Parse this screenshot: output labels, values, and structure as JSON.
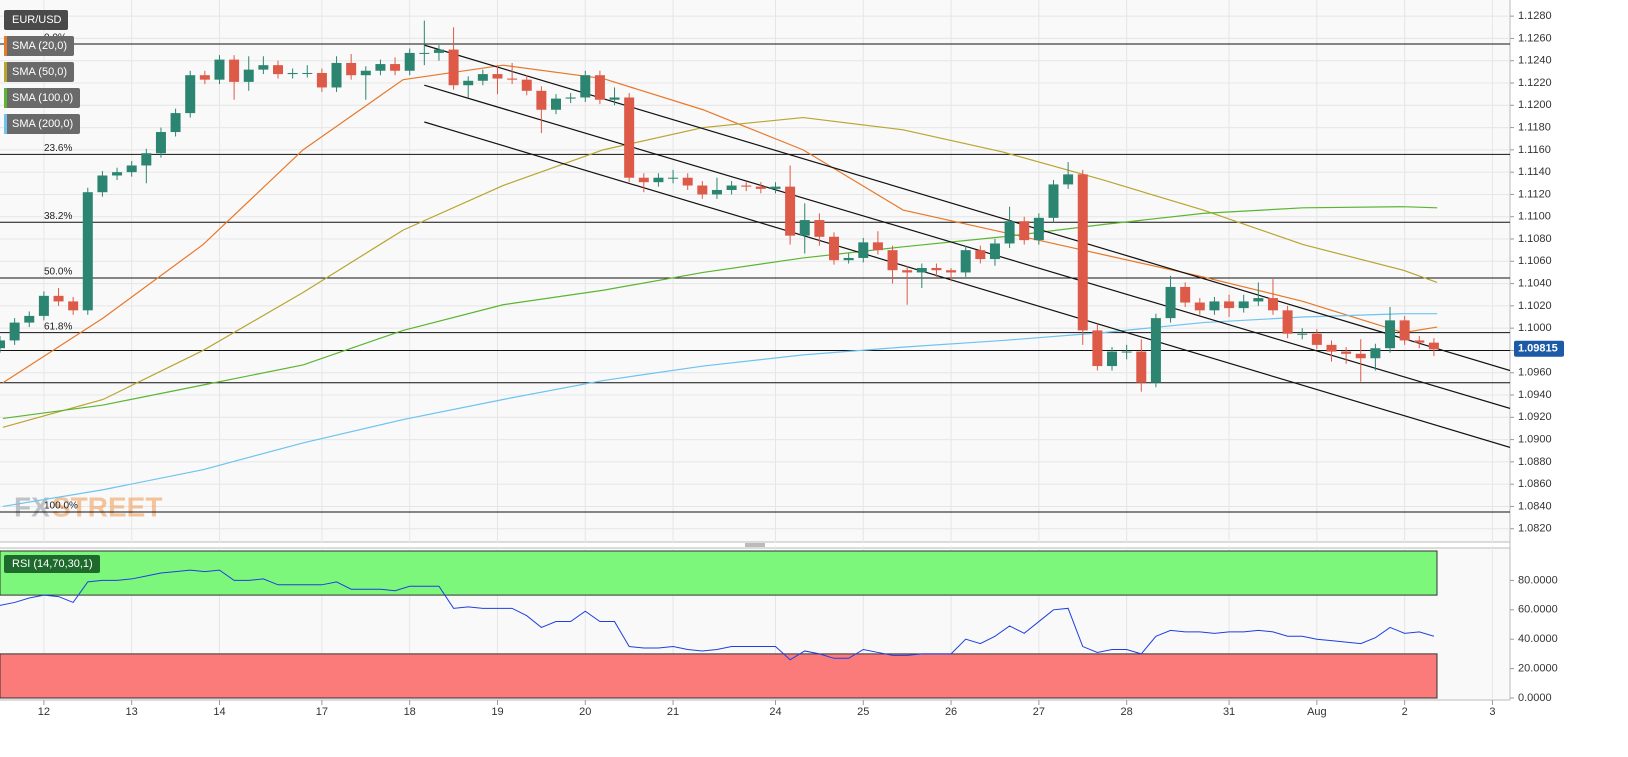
{
  "chart_data": [
    {
      "type": "candlestick",
      "title": "EUR/USD",
      "watermark": [
        "FX",
        "STREET"
      ],
      "up_color": "#2c8570",
      "down_color": "#dc5a47",
      "xlim": [
        0,
        103.2
      ],
      "xticks": [
        {
          "value": 3,
          "label": "12"
        },
        {
          "value": 9,
          "label": "13"
        },
        {
          "value": 15,
          "label": "14"
        },
        {
          "value": 22,
          "label": "17"
        },
        {
          "value": 28,
          "label": "18"
        },
        {
          "value": 34,
          "label": "19"
        },
        {
          "value": 40,
          "label": "20"
        },
        {
          "value": 46,
          "label": "21"
        },
        {
          "value": 53,
          "label": "24"
        },
        {
          "value": 59,
          "label": "25"
        },
        {
          "value": 65,
          "label": "26"
        },
        {
          "value": 71,
          "label": "27"
        },
        {
          "value": 77,
          "label": "28"
        },
        {
          "value": 84,
          "label": "31"
        },
        {
          "value": 90,
          "label": "Aug"
        },
        {
          "value": 96,
          "label": "2"
        },
        {
          "value": 102,
          "label": "3"
        }
      ],
      "ylim": [
        1.0809,
        1.129
      ],
      "yticks": [
        {
          "value": 1.082,
          "label": "1.0820"
        },
        {
          "value": 1.084,
          "label": "1.0840"
        },
        {
          "value": 1.086,
          "label": "1.0860"
        },
        {
          "value": 1.088,
          "label": "1.0880"
        },
        {
          "value": 1.09,
          "label": "1.0900"
        },
        {
          "value": 1.092,
          "label": "1.0920"
        },
        {
          "value": 1.094,
          "label": "1.0940"
        },
        {
          "value": 1.096,
          "label": "1.0960"
        },
        {
          "value": 1.098,
          "label": "1.0980"
        },
        {
          "value": 1.1,
          "label": "1.1000"
        },
        {
          "value": 1.102,
          "label": "1.1020"
        },
        {
          "value": 1.104,
          "label": "1.1040"
        },
        {
          "value": 1.106,
          "label": "1.1060"
        },
        {
          "value": 1.108,
          "label": "1.1080"
        },
        {
          "value": 1.11,
          "label": "1.1100"
        },
        {
          "value": 1.112,
          "label": "1.1120"
        },
        {
          "value": 1.114,
          "label": "1.1140"
        },
        {
          "value": 1.116,
          "label": "1.1160"
        },
        {
          "value": 1.118,
          "label": "1.1180"
        },
        {
          "value": 1.12,
          "label": "1.1200"
        },
        {
          "value": 1.122,
          "label": "1.1220"
        },
        {
          "value": 1.124,
          "label": "1.1240"
        },
        {
          "value": 1.126,
          "label": "1.1260"
        },
        {
          "value": 1.128,
          "label": "1.1280"
        }
      ],
      "grid": true,
      "last_price": 1.09815,
      "open": [
        1.0982,
        1.0989,
        1.1005,
        1.1011,
        1.1029,
        1.1024,
        1.1016,
        1.1122,
        1.1137,
        1.114,
        1.1146,
        1.1157,
        1.1176,
        1.1193,
        1.1227,
        1.1223,
        1.1241,
        1.1221,
        1.1232,
        1.1236,
        1.1228,
        1.1229,
        1.1229,
        1.1216,
        1.1238,
        1.1227,
        1.1231,
        1.1237,
        1.1231,
        1.1247,
        1.1247,
        1.125,
        1.1218,
        1.1222,
        1.1228,
        1.1224,
        1.1223,
        1.1213,
        1.1196,
        1.1206,
        1.1207,
        1.1227,
        1.1205,
        1.1207,
        1.1135,
        1.1131,
        1.1135,
        1.1135,
        1.1128,
        1.112,
        1.1124,
        1.1128,
        1.1127,
        1.1125,
        1.1127,
        1.1083,
        1.1097,
        1.1082,
        1.1061,
        1.1063,
        1.1077,
        1.107,
        1.1052,
        1.105,
        1.1054,
        1.1052,
        1.105,
        1.107,
        1.1062,
        1.1076,
        1.1096,
        1.1079,
        1.1099,
        1.1129,
        1.1138,
        1.0998,
        1.0966,
        1.0979,
        1.0979,
        1.0951,
        1.1009,
        1.1037,
        1.1023,
        1.1016,
        1.1024,
        1.1018,
        1.1024,
        1.1027,
        1.1016,
        1.0995,
        1.0995,
        1.0985,
        1.0979,
        1.0977,
        1.0973,
        1.0982,
        1.1007,
        1.0989,
        1.0987
      ],
      "high": [
        1.0993,
        1.1009,
        1.1015,
        1.1033,
        1.1036,
        1.1028,
        1.1126,
        1.1141,
        1.1144,
        1.115,
        1.1161,
        1.118,
        1.1197,
        1.1231,
        1.1231,
        1.1245,
        1.1245,
        1.1244,
        1.1244,
        1.124,
        1.1233,
        1.1236,
        1.1233,
        1.1244,
        1.1246,
        1.1235,
        1.1241,
        1.1243,
        1.1251,
        1.1276,
        1.1254,
        1.127,
        1.1226,
        1.1232,
        1.1236,
        1.1238,
        1.1227,
        1.1217,
        1.121,
        1.1211,
        1.1231,
        1.1231,
        1.1216,
        1.1211,
        1.1139,
        1.1139,
        1.1142,
        1.1139,
        1.1132,
        1.1135,
        1.1132,
        1.1131,
        1.1131,
        1.1131,
        1.1146,
        1.1112,
        1.1103,
        1.1086,
        1.1067,
        1.1081,
        1.1087,
        1.1074,
        1.1056,
        1.1058,
        1.1058,
        1.1054,
        1.1074,
        1.1074,
        1.108,
        1.1109,
        1.11,
        1.1103,
        1.1133,
        1.1149,
        1.1142,
        1.1004,
        1.0983,
        1.0985,
        1.099,
        1.1013,
        1.1047,
        1.1041,
        1.1027,
        1.1028,
        1.103,
        1.103,
        1.1041,
        1.1044,
        1.102,
        1.1,
        1.0999,
        1.0989,
        1.0983,
        1.099,
        1.0986,
        1.1019,
        1.1011,
        1.0993,
        1.0991
      ],
      "low": [
        1.0978,
        1.0985,
        1.1001,
        1.1007,
        1.102,
        1.1012,
        1.1012,
        1.1118,
        1.1133,
        1.1136,
        1.113,
        1.1153,
        1.1172,
        1.1189,
        1.1219,
        1.1219,
        1.1205,
        1.1213,
        1.1228,
        1.1224,
        1.1224,
        1.1225,
        1.1212,
        1.1212,
        1.1223,
        1.1205,
        1.1227,
        1.1227,
        1.1227,
        1.1236,
        1.124,
        1.1214,
        1.1207,
        1.1218,
        1.121,
        1.1219,
        1.1209,
        1.1175,
        1.1192,
        1.1202,
        1.1203,
        1.1201,
        1.12,
        1.1131,
        1.1122,
        1.1127,
        1.113,
        1.1124,
        1.1116,
        1.1116,
        1.112,
        1.1123,
        1.1121,
        1.1121,
        1.1075,
        1.1067,
        1.1074,
        1.1057,
        1.1058,
        1.1059,
        1.1066,
        1.104,
        1.1021,
        1.1036,
        1.1046,
        1.1042,
        1.1046,
        1.1058,
        1.1056,
        1.1072,
        1.1075,
        1.1075,
        1.1095,
        1.1125,
        1.0985,
        1.0962,
        1.0962,
        1.0972,
        1.0943,
        1.0947,
        1.1005,
        1.1019,
        1.1012,
        1.1012,
        1.101,
        1.1014,
        1.102,
        1.1012,
        1.0991,
        1.099,
        1.0981,
        1.097,
        1.0968,
        1.0952,
        1.0962,
        1.0978,
        1.0985,
        1.0982,
        1.0975
      ],
      "close": [
        1.0989,
        1.1005,
        1.1011,
        1.1029,
        1.1024,
        1.1016,
        1.1122,
        1.1137,
        1.114,
        1.1146,
        1.1157,
        1.1176,
        1.1193,
        1.1227,
        1.1223,
        1.1241,
        1.1221,
        1.1232,
        1.1236,
        1.1228,
        1.1229,
        1.1229,
        1.1216,
        1.1238,
        1.1227,
        1.1231,
        1.1237,
        1.1231,
        1.1247,
        1.1247,
        1.125,
        1.1218,
        1.1222,
        1.1228,
        1.1224,
        1.1223,
        1.1213,
        1.1196,
        1.1206,
        1.1207,
        1.1227,
        1.1205,
        1.1207,
        1.1135,
        1.1131,
        1.1135,
        1.1135,
        1.1128,
        1.112,
        1.1124,
        1.1128,
        1.1127,
        1.1125,
        1.1127,
        1.1083,
        1.1097,
        1.1082,
        1.1061,
        1.1063,
        1.1077,
        1.107,
        1.1052,
        1.105,
        1.1054,
        1.1052,
        1.105,
        1.107,
        1.1062,
        1.1076,
        1.1096,
        1.1079,
        1.1099,
        1.1129,
        1.1138,
        1.0998,
        1.0966,
        1.0979,
        1.0979,
        1.0951,
        1.1009,
        1.1037,
        1.1023,
        1.1016,
        1.1024,
        1.1018,
        1.1024,
        1.1027,
        1.1016,
        1.0995,
        1.0995,
        1.0985,
        1.0979,
        1.0977,
        1.0973,
        1.0982,
        1.1007,
        1.0989,
        1.0987,
        1.0981
      ],
      "series": [
        {
          "name": "SMA (20,0)",
          "color": "#e8782a",
          "x": [
            0.2,
            7.04,
            13.88,
            20.71,
            27.55,
            34.38,
            41.22,
            48.05,
            54.89,
            61.72,
            68.56,
            75.39,
            82.23,
            89.06,
            95.9,
            98.22
          ],
          "values": [
            1.0951,
            1.1009,
            1.1075,
            1.116,
            1.1223,
            1.1236,
            1.1224,
            1.1196,
            1.116,
            1.1106,
            1.1086,
            1.1066,
            1.1046,
            1.1024,
            1.0996,
            1.1001
          ]
        },
        {
          "name": "SMA (50,0)",
          "color": "#b8a530",
          "x": [
            0.2,
            7.04,
            13.88,
            20.71,
            27.55,
            34.38,
            41.22,
            48.05,
            54.89,
            61.72,
            68.56,
            75.39,
            82.23,
            89.06,
            95.9,
            98.22
          ],
          "values": [
            1.0911,
            1.0936,
            1.098,
            1.1032,
            1.1088,
            1.1128,
            1.116,
            1.118,
            1.1189,
            1.1178,
            1.1158,
            1.1133,
            1.1106,
            1.1075,
            1.1052,
            1.1041
          ]
        },
        {
          "name": "SMA (100,0)",
          "color": "#5bb531",
          "x": [
            0.2,
            7.04,
            13.88,
            20.71,
            27.55,
            34.38,
            41.22,
            48.05,
            54.89,
            61.72,
            68.56,
            75.39,
            82.23,
            89.06,
            95.9,
            98.22
          ],
          "values": [
            1.0919,
            1.0931,
            1.0949,
            1.0967,
            1.0998,
            1.1021,
            1.1034,
            1.105,
            1.1063,
            1.1073,
            1.1082,
            1.1093,
            1.1103,
            1.1108,
            1.1109,
            1.1108
          ]
        },
        {
          "name": "SMA (200,0)",
          "color": "#6ec3ef",
          "x": [
            0.2,
            7.04,
            13.88,
            20.71,
            27.55,
            34.38,
            41.22,
            48.05,
            54.89,
            61.72,
            68.56,
            75.39,
            82.23,
            89.06,
            95.9,
            98.22
          ],
          "values": [
            1.084,
            1.0855,
            1.0873,
            1.0897,
            1.0918,
            1.0936,
            1.0953,
            1.0966,
            1.0976,
            1.0983,
            1.0989,
            1.0996,
            1.1005,
            1.101,
            1.1013,
            1.1013
          ]
        }
      ],
      "fib_levels": [
        {
          "label": "0.0%",
          "price": 1.1255
        },
        {
          "label": "23.6%",
          "price": 1.1156
        },
        {
          "label": "38.2%",
          "price": 1.1095
        },
        {
          "label": "50.0%",
          "price": 1.1045
        },
        {
          "label": "61.8%",
          "price": 1.0996
        },
        {
          "label": "100.0%",
          "price": 1.0835
        }
      ],
      "hlines": [
        1.098,
        1.0951
      ],
      "trendlines": [
        {
          "x": [
            29,
            103.2
          ],
          "values": [
            1.1254,
            1.0962
          ]
        },
        {
          "x": [
            29,
            103.2
          ],
          "values": [
            1.1218,
            1.0928
          ]
        },
        {
          "x": [
            29,
            103.2
          ],
          "values": [
            1.1185,
            1.0893
          ]
        }
      ]
    },
    {
      "type": "line",
      "title": "RSI (14,70,30,1)",
      "color": "#1f3fe0",
      "ylim": [
        0,
        100
      ],
      "yticks": [
        {
          "value": 0,
          "label": "0.0000"
        },
        {
          "value": 20,
          "label": "20.0000"
        },
        {
          "value": 40,
          "label": "40.0000"
        },
        {
          "value": 60,
          "label": "60.0000"
        },
        {
          "value": 80,
          "label": "80.0000"
        }
      ],
      "overbought": 70,
      "oversold": 30,
      "overbought_color": "#7cf77c",
      "oversold_color": "#fb7b7b",
      "values": [
        63,
        65,
        68,
        70,
        69,
        65,
        79,
        80,
        80,
        81,
        83,
        85,
        86,
        87,
        86,
        87,
        80,
        80,
        81,
        77,
        77,
        77,
        77,
        79,
        74,
        74,
        74,
        73,
        76,
        76,
        76,
        61,
        62,
        61,
        61,
        61,
        56,
        48,
        52,
        52,
        59,
        52,
        52,
        35,
        34,
        34,
        35,
        33,
        32,
        33,
        35,
        35,
        35,
        35,
        26,
        32,
        30,
        27,
        27,
        33,
        31,
        29,
        29,
        30,
        30,
        30,
        40,
        37,
        42,
        49,
        44,
        52,
        60,
        61,
        35,
        31,
        33,
        33,
        30,
        42,
        46,
        45,
        45,
        44,
        45,
        45,
        46,
        45,
        42,
        42,
        40,
        39,
        38,
        37,
        41,
        48,
        44,
        45,
        42
      ]
    }
  ]
}
